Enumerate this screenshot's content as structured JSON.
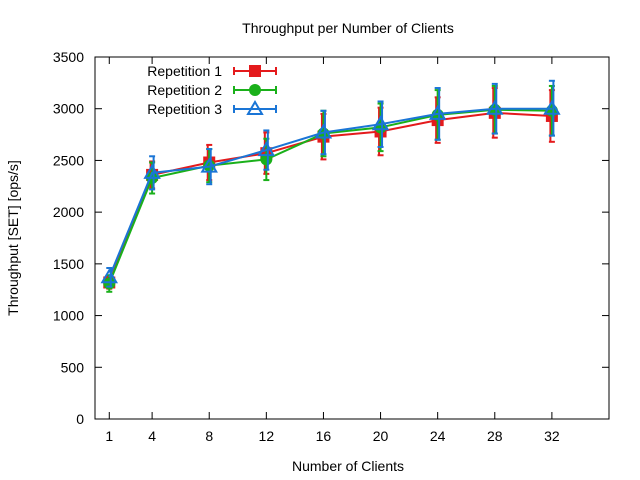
{
  "chart_data": {
    "type": "line",
    "title": "Throughput per Number of Clients",
    "xlabel": "Number of Clients",
    "ylabel": "Throughput [SET] [ops/s]",
    "x": [
      1,
      4,
      8,
      12,
      16,
      20,
      24,
      28,
      32
    ],
    "xlim": [
      0,
      36
    ],
    "ylim": [
      0,
      3500
    ],
    "xticks": [
      1,
      4,
      8,
      12,
      16,
      20,
      24,
      28,
      32
    ],
    "yticks": [
      0,
      500,
      1000,
      1500,
      2000,
      2500,
      3000,
      3500
    ],
    "grid": false,
    "legend_position": "top-left",
    "series": [
      {
        "name": "Repetition 1",
        "color": "#e41a1c",
        "marker": "filled-square",
        "values": [
          1320,
          2360,
          2480,
          2570,
          2730,
          2780,
          2890,
          2960,
          2930
        ],
        "errors": [
          [
            1260,
            1380
          ],
          [
            2230,
            2490
          ],
          [
            2310,
            2650
          ],
          [
            2370,
            2770
          ],
          [
            2510,
            2950
          ],
          [
            2550,
            3010
          ],
          [
            2670,
            3110
          ],
          [
            2720,
            3200
          ],
          [
            2680,
            3180
          ]
        ]
      },
      {
        "name": "Repetition 2",
        "color": "#1ab01a",
        "marker": "filled-circle",
        "values": [
          1310,
          2330,
          2450,
          2510,
          2760,
          2820,
          2940,
          2990,
          2980
        ],
        "errors": [
          [
            1230,
            1390
          ],
          [
            2180,
            2480
          ],
          [
            2290,
            2610
          ],
          [
            2310,
            2710
          ],
          [
            2540,
            2980
          ],
          [
            2590,
            3050
          ],
          [
            2700,
            3180
          ],
          [
            2760,
            3220
          ],
          [
            2740,
            3220
          ]
        ]
      },
      {
        "name": "Repetition 3",
        "color": "#1a75d6",
        "marker": "open-triangle",
        "values": [
          1370,
          2380,
          2440,
          2600,
          2770,
          2850,
          2950,
          3000,
          3000
        ],
        "errors": [
          [
            1280,
            1460
          ],
          [
            2220,
            2540
          ],
          [
            2270,
            2610
          ],
          [
            2410,
            2790
          ],
          [
            2560,
            2980
          ],
          [
            2630,
            3070
          ],
          [
            2700,
            3200
          ],
          [
            2760,
            3240
          ],
          [
            2740,
            3270
          ]
        ]
      }
    ]
  }
}
